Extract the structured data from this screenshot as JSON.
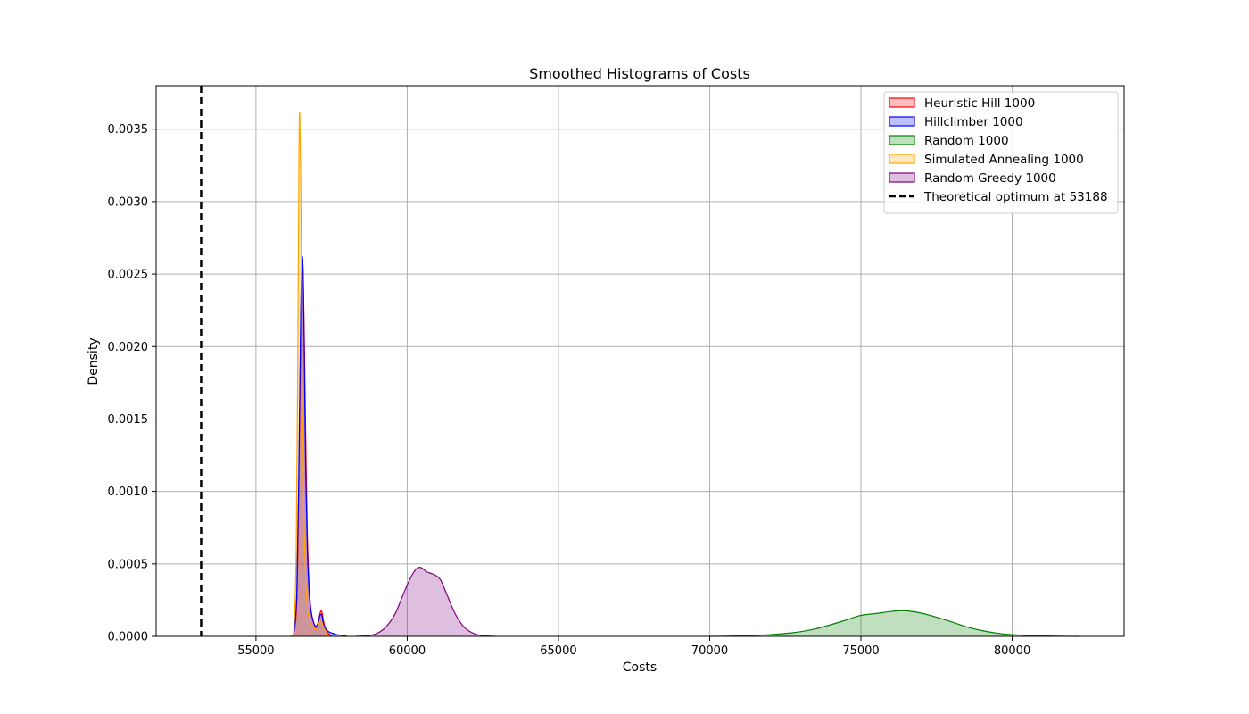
{
  "chart_data": {
    "type": "area",
    "title": "Smoothed Histograms of  Costs",
    "xlabel": "Costs",
    "ylabel": "Density",
    "xlim": [
      51700,
      83700
    ],
    "ylim": [
      0,
      0.0038
    ],
    "x_ticks": [
      55000,
      60000,
      65000,
      70000,
      75000,
      80000
    ],
    "y_ticks": [
      0.0,
      0.0005,
      0.001,
      0.0015,
      0.002,
      0.0025,
      0.003,
      0.0035
    ],
    "x_tick_labels": [
      "55000",
      "60000",
      "65000",
      "70000",
      "75000",
      "80000"
    ],
    "y_tick_labels": [
      "0.0000",
      "0.0005",
      "0.0010",
      "0.0015",
      "0.0020",
      "0.0025",
      "0.0030",
      "0.0035"
    ],
    "grid": true,
    "legend_position": "top-right",
    "series": [
      {
        "name": "Heuristic Hill 1000",
        "color": "#ff0000",
        "x": [
          56150,
          56250,
          56350,
          56420,
          56480,
          56530,
          56570,
          56610,
          56650,
          56700,
          56760,
          56820,
          56900,
          56980,
          57050,
          57120,
          57180,
          57250,
          57330,
          57420,
          57520
        ],
        "y": [
          0,
          2e-05,
          0.00025,
          0.0011,
          0.0021,
          0.0026,
          0.0024,
          0.0019,
          0.0013,
          0.0007,
          0.00035,
          0.00018,
          0.0001,
          6e-05,
          8e-05,
          0.00016,
          0.00017,
          9e-05,
          4e-05,
          1.5e-05,
          0
        ]
      },
      {
        "name": "Hillclimber 1000",
        "color": "#0000ff",
        "x": [
          56150,
          56250,
          56350,
          56420,
          56480,
          56520,
          56560,
          56600,
          56640,
          56700,
          56760,
          56830,
          56900,
          56980,
          57050,
          57110,
          57170,
          57240,
          57320,
          57420,
          57550,
          57700,
          57850,
          58000
        ],
        "y": [
          0,
          2e-05,
          0.0003,
          0.0012,
          0.0022,
          0.0026,
          0.0025,
          0.0019,
          0.0012,
          0.0006,
          0.0003,
          0.00016,
          0.0001,
          7e-05,
          9e-05,
          0.00014,
          0.00015,
          8e-05,
          5e-05,
          3e-05,
          2e-05,
          1e-05,
          8e-06,
          0
        ]
      },
      {
        "name": "Random 1000",
        "color": "#008000",
        "x": [
          70000,
          71000,
          72000,
          72500,
          73000,
          73500,
          74000,
          74500,
          75000,
          75500,
          76000,
          76300,
          76600,
          77000,
          77500,
          78000,
          78500,
          79000,
          79500,
          80000,
          81000,
          82200
        ],
        "y": [
          0,
          3e-06,
          1.2e-05,
          2e-05,
          3.2e-05,
          5.2e-05,
          8e-05,
          0.000112,
          0.000145,
          0.000158,
          0.000172,
          0.000177,
          0.000174,
          0.00016,
          0.000132,
          0.0001,
          6.5e-05,
          4e-05,
          2.2e-05,
          1.2e-05,
          3e-06,
          0
        ]
      },
      {
        "name": "Simulated Annealing 1000",
        "color": "#ffa500",
        "x": [
          56150,
          56250,
          56330,
          56380,
          56420,
          56450,
          56490,
          56530,
          56580,
          56640,
          56700,
          56760,
          56830,
          56900,
          56980,
          57050,
          57120,
          57180,
          57240,
          57320,
          57420
        ],
        "y": [
          0,
          3e-05,
          0.0006,
          0.0018,
          0.0033,
          0.0036,
          0.003,
          0.0018,
          0.0009,
          0.00042,
          0.0002,
          0.00012,
          8e-05,
          6e-05,
          5e-05,
          7e-05,
          0.00011,
          0.0001,
          6e-05,
          2e-05,
          0
        ]
      },
      {
        "name": "Random Greedy 1000",
        "color": "#800080",
        "x": [
          58300,
          58700,
          59000,
          59300,
          59600,
          59850,
          60100,
          60300,
          60450,
          60650,
          60900,
          61100,
          61300,
          61600,
          61900,
          62200,
          62500,
          62900
        ],
        "y": [
          0,
          5e-06,
          2e-05,
          6.5e-05,
          0.000155,
          0.00028,
          0.0004,
          0.000465,
          0.000475,
          0.000445,
          0.000425,
          0.00039,
          0.000295,
          0.00015,
          6e-05,
          2e-05,
          5e-06,
          0
        ]
      }
    ],
    "optimum": {
      "name": "Theoretical optimum at 53188",
      "x": 53188,
      "color": "#000000"
    }
  }
}
